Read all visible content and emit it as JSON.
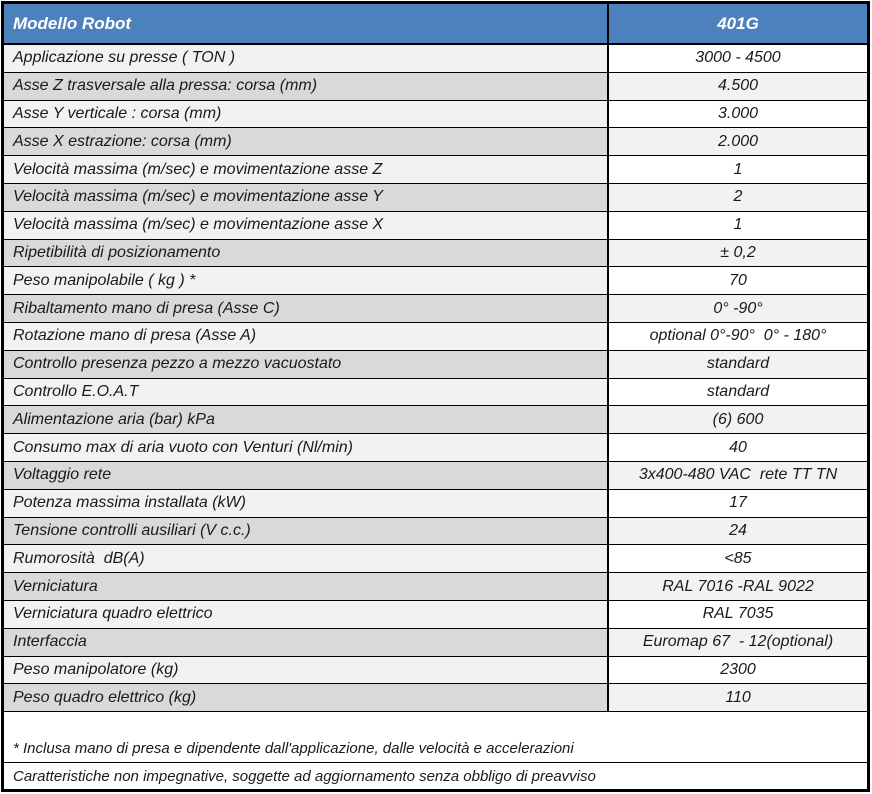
{
  "document": {
    "header": {
      "model_label": "Modello Robot",
      "model_value": "401G"
    },
    "rows": [
      {
        "label": "Applicazione su presse ( TON )",
        "value": "3000 - 4500"
      },
      {
        "label": "Asse Z trasversale alla pressa: corsa (mm)",
        "value": "4.500"
      },
      {
        "label": "Asse Y verticale : corsa (mm)",
        "value": "3.000"
      },
      {
        "label": "Asse X estrazione: corsa (mm)",
        "value": "2.000"
      },
      {
        "label": "Velocità massima (m/sec) e movimentazione asse Z",
        "value": "1"
      },
      {
        "label": "Velocità massima (m/sec) e movimentazione asse Y",
        "value": "2"
      },
      {
        "label": "Velocità massima (m/sec) e movimentazione asse X",
        "value": "1"
      },
      {
        "label": "Ripetibilità di posizionamento",
        "value": "± 0,2"
      },
      {
        "label": "Peso manipolabile ( kg ) *",
        "value": "70"
      },
      {
        "label": "Ribaltamento mano di presa (Asse C)",
        "value": "0° -90°"
      },
      {
        "label": "Rotazione mano di presa (Asse A)",
        "value": "optional 0°-90°  0° - 180°"
      },
      {
        "label": "Controllo presenza pezzo a mezzo vacuostato",
        "value": "standard"
      },
      {
        "label": "Controllo E.O.A.T",
        "value": "standard"
      },
      {
        "label": "Alimentazione aria (bar) kPa",
        "value": "(6) 600"
      },
      {
        "label": "Consumo max di aria vuoto con Venturi (Nl/min)",
        "value": "40"
      },
      {
        "label": "Voltaggio rete",
        "value": "3x400-480 VAC  rete TT TN"
      },
      {
        "label": "Potenza massima installata (kW)",
        "value": "17"
      },
      {
        "label": "Tensione controlli ausiliari (V c.c.)",
        "value": "24"
      },
      {
        "label": "Rumorosità  dB(A)",
        "value": "<85"
      },
      {
        "label": "Verniciatura",
        "value": "RAL 7016 -RAL 9022"
      },
      {
        "label": "Verniciatura quadro elettrico",
        "value": "RAL 7035"
      },
      {
        "label": "Interfaccia",
        "value": "Euromap 67  - 12(optional)"
      },
      {
        "label": "Peso manipolatore (kg)",
        "value": "2300"
      },
      {
        "label": "Peso quadro elettrico (kg)",
        "value": "110"
      }
    ],
    "footnotes": [
      "* Inclusa mano di presa e dipendente dall'applicazione, dalle velocità e accelerazioni",
      "Caratteristiche non impegnative, soggette ad aggiornamento senza obbligo di preavviso"
    ],
    "colors": {
      "header_bg": "#4C81BD",
      "header_text": "#FFFFFF",
      "row_light_left": "#F2F2F2",
      "row_light_right": "#FFFFFF",
      "row_dark_left": "#D9D9D9",
      "row_dark_right": "#F2F2F2",
      "border": "#000000",
      "text": "#1A1A1A"
    }
  }
}
